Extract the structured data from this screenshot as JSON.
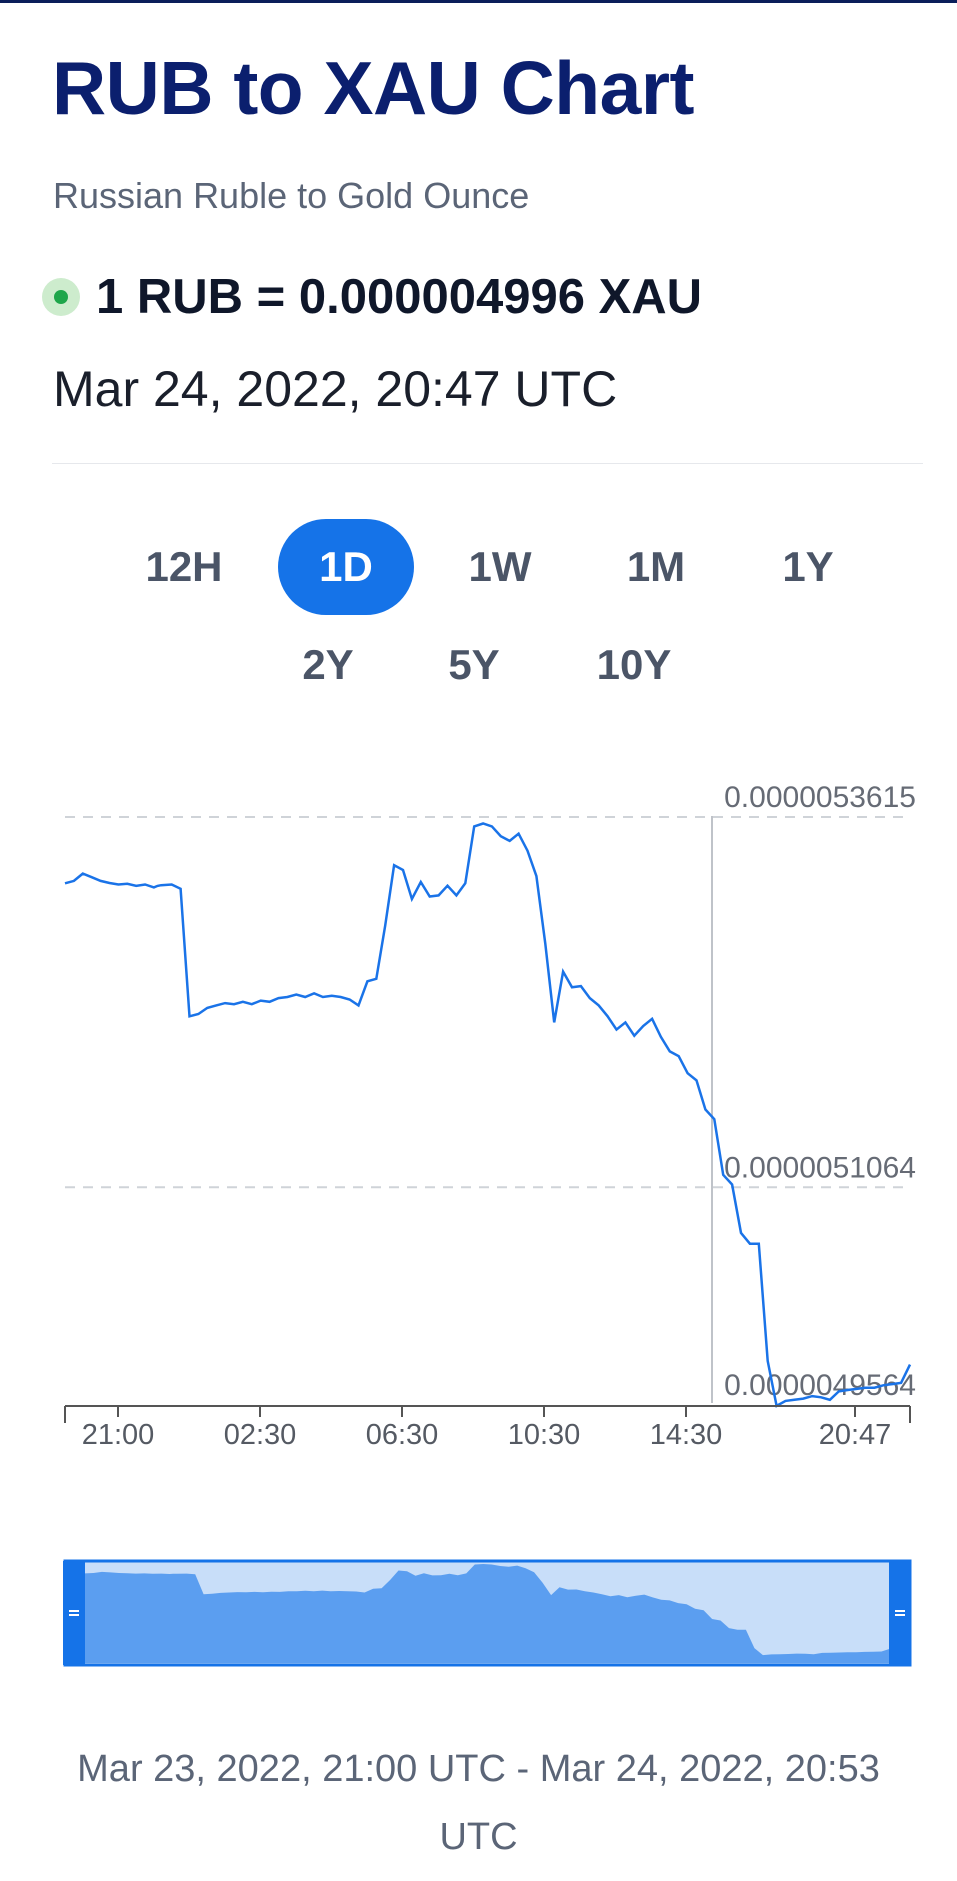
{
  "header": {
    "title": "RUB to XAU Chart",
    "subtitle": "Russian Ruble to Gold Ounce"
  },
  "rate": {
    "text": "1 RUB = 0.000004996 XAU",
    "timestamp": "Mar 24, 2022, 20:47 UTC"
  },
  "ranges": [
    {
      "label": "12H",
      "active": false
    },
    {
      "label": "1D",
      "active": true
    },
    {
      "label": "1W",
      "active": false
    },
    {
      "label": "1M",
      "active": false
    },
    {
      "label": "1Y",
      "active": false
    },
    {
      "label": "2Y",
      "active": false
    },
    {
      "label": "5Y",
      "active": false
    },
    {
      "label": "10Y",
      "active": false
    }
  ],
  "colors": {
    "accent": "#1573e8",
    "title": "#0b1f6e",
    "line": "#1a73e8",
    "navigator_fill": "#5b9ef0",
    "navigator_bg": "#c8def9",
    "live": "#1ea64a"
  },
  "icons": {
    "live_indicator": "green-dot-icon",
    "navigator_handle": "grip-handle-icon"
  },
  "chart_data": {
    "type": "line",
    "title": "",
    "xlabel": "",
    "ylabel": "",
    "ylim": [
      4.9564e-06,
      5.3615e-06
    ],
    "ytick_labels": [
      "0.0000053615",
      "0.0000051064",
      "0.0000049564"
    ],
    "xtick_labels": [
      "21:00",
      "02:30",
      "06:30",
      "10:30",
      "14:30",
      "20:47"
    ],
    "x_hours": [
      0,
      0.5,
      1,
      1.5,
      2,
      2.5,
      3,
      3.5,
      4,
      4.5,
      5,
      5.2,
      5.4,
      6,
      6.5,
      7,
      7.5,
      8,
      8.5,
      9,
      9.5,
      10,
      10.5,
      11,
      11.5,
      12,
      12.5,
      13,
      13.5,
      14,
      14.5,
      15,
      15.5,
      16,
      16.5,
      17,
      17.5,
      18,
      18.5,
      19,
      19.5,
      20,
      20.5,
      21,
      21.5,
      22,
      22.5,
      23,
      23.5,
      24,
      24.5,
      25,
      25.5,
      26,
      26.5,
      27,
      27.5,
      28,
      28.5,
      29,
      29.5,
      30,
      30.5,
      31,
      31.5,
      32,
      32.5,
      33,
      33.5,
      34,
      34.5,
      35,
      35.5,
      36,
      36.5,
      37,
      37.5,
      38,
      38.5,
      39,
      39.5,
      40,
      40.5,
      41,
      41.5,
      42,
      42.5,
      43,
      43.5,
      44,
      44.5,
      45,
      45.5,
      46,
      46.5,
      47,
      47.5
    ],
    "values": [
      5.3158e-06,
      5.3175e-06,
      5.3225e-06,
      5.32e-06,
      5.3175e-06,
      5.316e-06,
      5.315e-06,
      5.3155e-06,
      5.314e-06,
      5.315e-06,
      5.313e-06,
      5.314e-06,
      5.3145e-06,
      5.315e-06,
      5.312e-06,
      5.2242e-06,
      5.2258e-06,
      5.23e-06,
      5.2317e-06,
      5.2333e-06,
      5.2325e-06,
      5.2342e-06,
      5.2325e-06,
      5.235e-06,
      5.2342e-06,
      5.2367e-06,
      5.2375e-06,
      5.2392e-06,
      5.2375e-06,
      5.24e-06,
      5.2375e-06,
      5.2383e-06,
      5.2375e-06,
      5.2358e-06,
      5.2317e-06,
      5.2483e-06,
      5.25e-06,
      5.2867e-06,
      5.3283e-06,
      5.325e-06,
      5.305e-06,
      5.3167e-06,
      5.3067e-06,
      5.3075e-06,
      5.3142e-06,
      5.3075e-06,
      5.3158e-06,
      5.355e-06,
      5.357e-06,
      5.355e-06,
      5.3483e-06,
      5.345e-06,
      5.35e-06,
      5.3383e-06,
      5.3208e-06,
      5.2742e-06,
      5.22e-06,
      5.255e-06,
      5.2442e-06,
      5.245e-06,
      5.2367e-06,
      5.2317e-06,
      5.2242e-06,
      5.215e-06,
      5.22e-06,
      5.2108e-06,
      5.2175e-06,
      5.2225e-06,
      5.21e-06,
      5.2e-06,
      5.1967e-06,
      5.185e-06,
      5.18e-06,
      5.16e-06,
      5.1533e-06,
      5.115e-06,
      5.1083e-06,
      5.075e-06,
      5.0675e-06,
      5.0675e-06,
      4.9867e-06,
      4.9558e-06,
      4.9592e-06,
      4.96e-06,
      4.9608e-06,
      4.9625e-06,
      4.9617e-06,
      4.96e-06,
      4.9658e-06,
      4.9667e-06,
      4.9675e-06,
      4.9683e-06,
      4.9683e-06,
      4.97e-06,
      4.9708e-06,
      4.9717e-06,
      4.9842e-06
    ],
    "navigator_range": "Mar 23, 2022, 21:00 UTC - Mar 24, 2022, 20:53 UTC"
  }
}
